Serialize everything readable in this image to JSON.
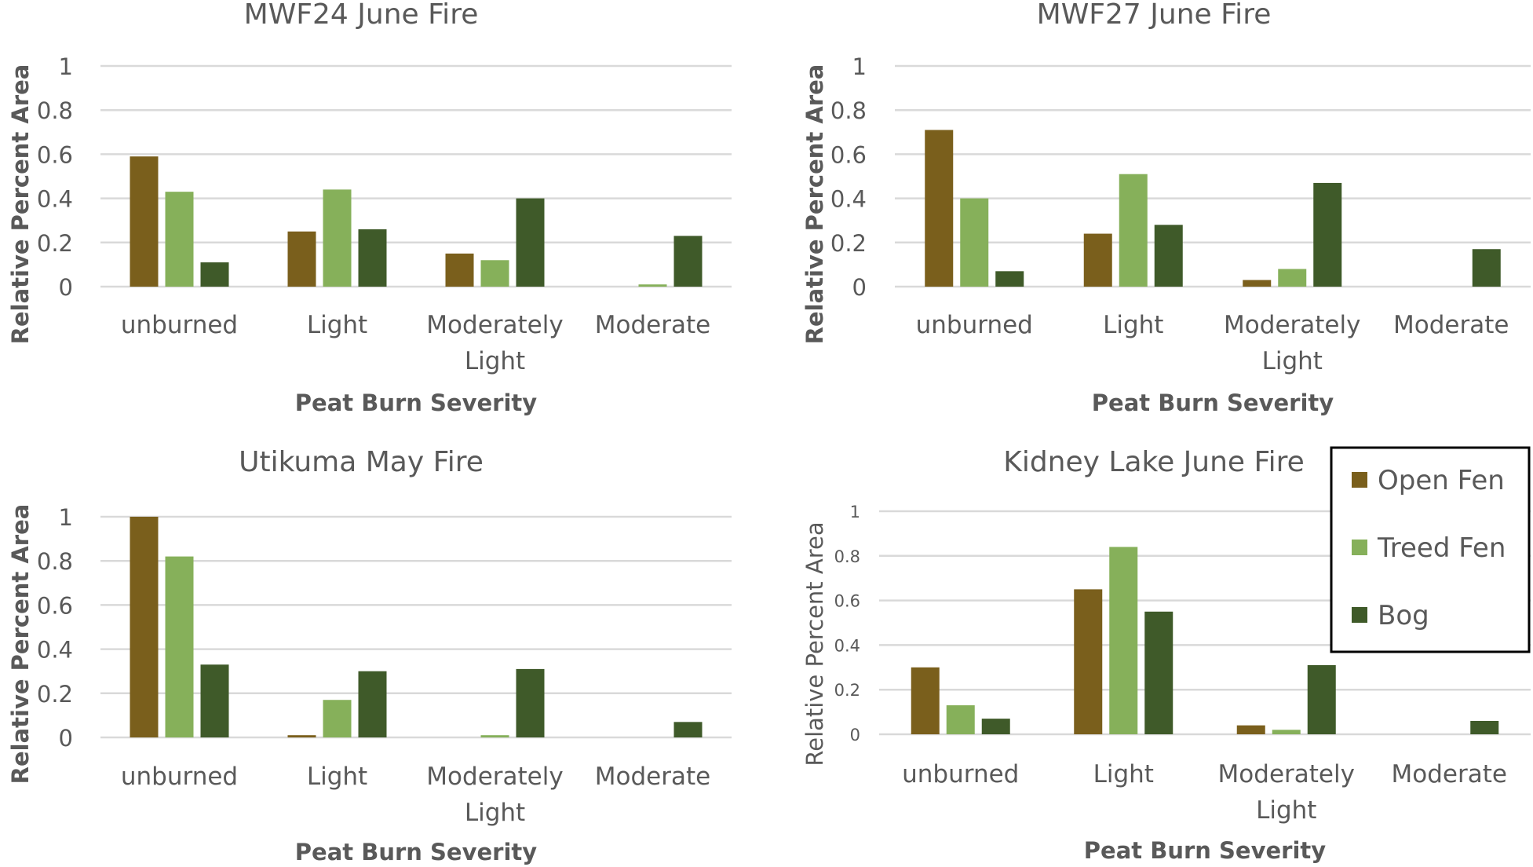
{
  "legend": [
    {
      "name": "Open Fen",
      "color": "#7a5f1c"
    },
    {
      "name": "Treed Fen",
      "color": "#86b05a"
    },
    {
      "name": "Bog",
      "color": "#3f5a29"
    }
  ],
  "chart_data": [
    {
      "type": "bar",
      "title": "MWF24 June Fire",
      "xlabel": "Peat Burn Severity",
      "ylabel": "Relative Percent Area",
      "ylim": [
        0,
        1
      ],
      "yticks": [
        "0",
        "0.2",
        "0.4",
        "0.6",
        "0.8",
        "1"
      ],
      "categories": [
        [
          "unburned"
        ],
        [
          "Light"
        ],
        [
          "Moderately",
          "Light"
        ],
        [
          "Moderate"
        ]
      ],
      "series": [
        {
          "name": "Open Fen",
          "values": [
            0.59,
            0.25,
            0.15,
            0
          ]
        },
        {
          "name": "Treed Fen",
          "values": [
            0.43,
            0.44,
            0.12,
            0.01
          ]
        },
        {
          "name": "Bog",
          "values": [
            0.11,
            0.26,
            0.4,
            0.23
          ]
        }
      ]
    },
    {
      "type": "bar",
      "title": "MWF27 June Fire",
      "xlabel": "Peat Burn Severity",
      "ylabel": "Relative Percent Area",
      "ylim": [
        0,
        1
      ],
      "yticks": [
        "0",
        "0.2",
        "0.4",
        "0.6",
        "0.8",
        "1"
      ],
      "categories": [
        [
          "unburned"
        ],
        [
          "Light"
        ],
        [
          "Moderately",
          "Light"
        ],
        [
          "Moderate"
        ]
      ],
      "series": [
        {
          "name": "Open Fen",
          "values": [
            0.71,
            0.24,
            0.03,
            0
          ]
        },
        {
          "name": "Treed Fen",
          "values": [
            0.4,
            0.51,
            0.08,
            0
          ]
        },
        {
          "name": "Bog",
          "values": [
            0.07,
            0.28,
            0.47,
            0.17
          ]
        }
      ]
    },
    {
      "type": "bar",
      "title": "Utikuma May Fire",
      "xlabel": "Peat Burn Severity",
      "ylabel": "Relative Percent Area",
      "ylim": [
        0,
        1
      ],
      "yticks": [
        "0",
        "0.2",
        "0.4",
        "0.6",
        "0.8",
        "1"
      ],
      "categories": [
        [
          "unburned"
        ],
        [
          "Light"
        ],
        [
          "Moderately",
          "Light"
        ],
        [
          "Moderate"
        ]
      ],
      "series": [
        {
          "name": "Open Fen",
          "values": [
            1.0,
            0.01,
            0,
            0
          ]
        },
        {
          "name": "Treed Fen",
          "values": [
            0.82,
            0.17,
            0.01,
            0
          ]
        },
        {
          "name": "Bog",
          "values": [
            0.33,
            0.3,
            0.31,
            0.07
          ]
        }
      ]
    },
    {
      "type": "bar",
      "title": "Kidney Lake June Fire",
      "xlabel": "Peat Burn Severity",
      "ylabel": "Relative Percent Area",
      "ylim": [
        0,
        1
      ],
      "yticks": [
        "0",
        "0.2",
        "0.4",
        "0.6",
        "0.8",
        "1"
      ],
      "categories": [
        [
          "unburned"
        ],
        [
          "Light"
        ],
        [
          "Moderately",
          "Light"
        ],
        [
          "Moderate"
        ]
      ],
      "series": [
        {
          "name": "Open Fen",
          "values": [
            0.3,
            0.65,
            0.04,
            0
          ]
        },
        {
          "name": "Treed Fen",
          "values": [
            0.13,
            0.84,
            0.02,
            0
          ]
        },
        {
          "name": "Bog",
          "values": [
            0.07,
            0.55,
            0.31,
            0.06
          ]
        }
      ]
    }
  ]
}
